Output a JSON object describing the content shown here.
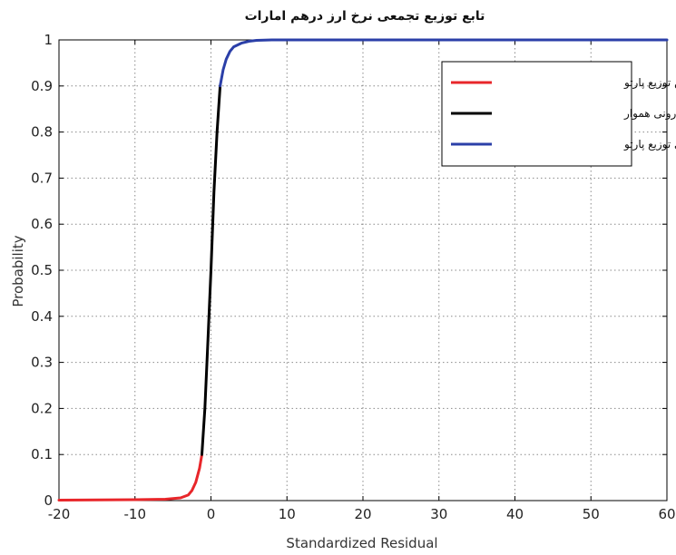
{
  "chart_data": {
    "type": "line",
    "title": "تابع توزیع تجمعی نرخ ارز درهم امارات",
    "xlabel": "Standardized Residual",
    "ylabel": "Probability",
    "xlim": [
      -20,
      60
    ],
    "ylim": [
      0,
      1
    ],
    "xticks": [
      -20,
      -10,
      0,
      10,
      20,
      30,
      40,
      50,
      60
    ],
    "yticks": [
      0,
      0.1,
      0.2,
      0.3,
      0.4,
      0.5,
      0.6,
      0.7,
      0.8,
      0.9,
      1
    ],
    "grid": true,
    "legend_position": "top-right",
    "series": [
      {
        "name": "دم پائین توزیع پارتو",
        "color": "#e8262a",
        "x": [
          -20,
          -10,
          -6,
          -4,
          -3,
          -2.5,
          -2,
          -1.5,
          -1.2
        ],
        "y": [
          0.001,
          0.002,
          0.003,
          0.006,
          0.012,
          0.022,
          0.04,
          0.07,
          0.1
        ]
      },
      {
        "name": "توزیع کرنل درونی هموار",
        "color": "#000000",
        "x": [
          -1.2,
          -0.8,
          -0.4,
          0,
          0.4,
          0.8,
          1.2
        ],
        "y": [
          0.1,
          0.2,
          0.35,
          0.5,
          0.67,
          0.8,
          0.9
        ]
      },
      {
        "name": "دم بالای توزیع پارتو",
        "color": "#2b3fa8",
        "x": [
          1.2,
          1.6,
          2,
          2.5,
          3,
          4,
          5,
          6,
          8,
          10,
          20,
          40,
          60
        ],
        "y": [
          0.9,
          0.935,
          0.958,
          0.975,
          0.985,
          0.993,
          0.997,
          0.999,
          1,
          1,
          1,
          1,
          1
        ]
      }
    ]
  }
}
